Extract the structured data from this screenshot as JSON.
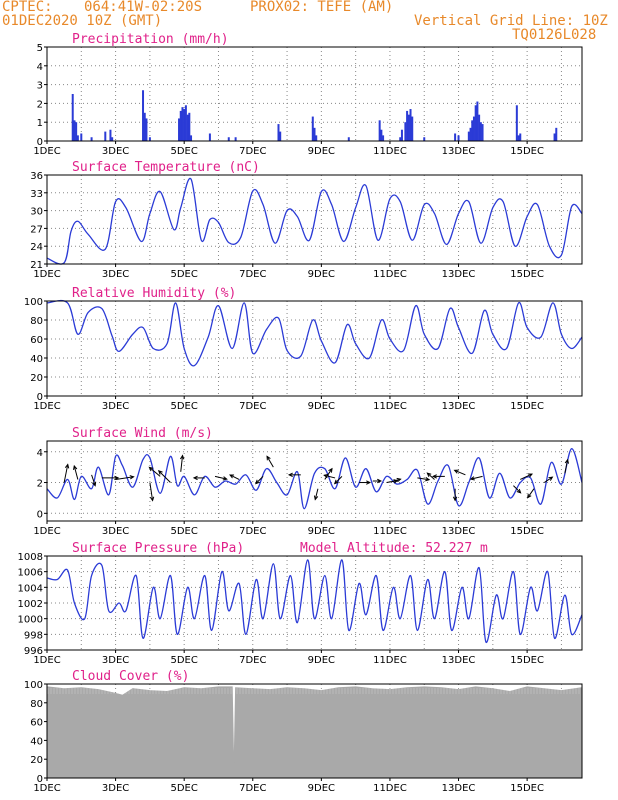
{
  "header": {
    "source": "CPTEC:",
    "location": "064:41W-02:20S",
    "station": "PROX02: TEFE (AM)",
    "run": "01DEC2020 10Z (GMT)",
    "grid_note": "Vertical Grid Line: 10Z",
    "model_code": "TQ0126L028"
  },
  "colors": {
    "header": "#e8892a",
    "title": "#e0218a",
    "series": "#2b3bd6",
    "cloud": "#a9a9a9",
    "wind_arrow": "#000000"
  },
  "chart_data": [
    {
      "id": "precip",
      "type": "bar",
      "title": "Precipitation (mm/h)",
      "xlabel": "",
      "ylabel": "",
      "x_unit": "day of Dec 2020 (10Z)",
      "xlim": [
        1,
        16.6
      ],
      "ylim": [
        0,
        5
      ],
      "yticks": [
        0,
        1,
        2,
        3,
        4,
        5
      ],
      "xtick_labels": [
        "1DEC",
        "3DEC",
        "5DEC",
        "7DEC",
        "9DEC",
        "11DEC",
        "13DEC",
        "15DEC"
      ],
      "grid": true,
      "x": [
        1.75,
        1.8,
        1.85,
        1.9,
        2.0,
        2.3,
        2.7,
        2.85,
        2.9,
        3.8,
        3.85,
        3.9,
        4.0,
        4.85,
        4.9,
        4.95,
        5.0,
        5.05,
        5.1,
        5.15,
        5.2,
        5.75,
        6.3,
        6.5,
        7.75,
        7.8,
        8.75,
        8.8,
        8.85,
        9.8,
        10.7,
        10.75,
        10.8,
        11.3,
        11.35,
        11.45,
        11.5,
        11.55,
        11.6,
        11.65,
        12.0,
        12.9,
        13.0,
        13.3,
        13.35,
        13.4,
        13.45,
        13.5,
        13.55,
        13.6,
        13.65,
        13.7,
        14.7,
        14.75,
        14.8,
        15.8,
        15.85
      ],
      "values": [
        2.5,
        1.1,
        1.0,
        0.3,
        0.4,
        0.2,
        0.5,
        0.6,
        0.2,
        2.7,
        1.5,
        1.2,
        0.2,
        1.2,
        1.6,
        1.8,
        1.7,
        1.9,
        1.4,
        1.5,
        0.3,
        0.4,
        0.2,
        0.2,
        0.9,
        0.5,
        1.3,
        0.7,
        0.3,
        0.2,
        1.1,
        0.6,
        0.3,
        0.2,
        0.6,
        1.0,
        1.6,
        1.4,
        1.7,
        1.3,
        0.2,
        0.4,
        0.3,
        0.5,
        0.7,
        1.1,
        1.3,
        1.9,
        2.1,
        1.4,
        1.0,
        0.9,
        1.9,
        0.3,
        0.4,
        0.4,
        0.7
      ]
    },
    {
      "id": "temp",
      "type": "line",
      "title": "Surface Temperature (nC)",
      "xlabel": "",
      "ylabel": "",
      "xlim": [
        1,
        16.6
      ],
      "ylim": [
        21,
        36
      ],
      "yticks": [
        21,
        24,
        27,
        30,
        33,
        36
      ],
      "xtick_labels": [
        "1DEC",
        "3DEC",
        "5DEC",
        "7DEC",
        "9DEC",
        "11DEC",
        "13DEC",
        "15DEC"
      ],
      "grid": true,
      "x": [
        1.0,
        1.5,
        1.7,
        1.9,
        2.2,
        2.7,
        3.0,
        3.3,
        3.75,
        4.0,
        4.3,
        4.7,
        4.9,
        5.2,
        5.5,
        5.75,
        6.0,
        6.3,
        6.65,
        7.0,
        7.3,
        7.65,
        8.0,
        8.3,
        8.65,
        9.0,
        9.3,
        9.65,
        10.0,
        10.3,
        10.65,
        11.0,
        11.3,
        11.65,
        12.0,
        12.3,
        12.65,
        13.0,
        13.3,
        13.65,
        14.0,
        14.3,
        14.65,
        15.0,
        15.3,
        15.65,
        16.0,
        16.3,
        16.6
      ],
      "values": [
        22.0,
        21.2,
        26.5,
        28.2,
        26.0,
        23.5,
        31.5,
        30.5,
        24.8,
        29.5,
        33.2,
        26.8,
        30.5,
        35.3,
        25.0,
        28.5,
        28.0,
        24.6,
        25.5,
        33.3,
        31.0,
        24.5,
        30.0,
        29.0,
        25.0,
        33.2,
        31.0,
        24.8,
        30.5,
        34.2,
        25.0,
        32.0,
        31.5,
        25.0,
        31.0,
        29.5,
        24.3,
        29.5,
        31.5,
        24.5,
        30.5,
        31.5,
        24.0,
        29.0,
        31.0,
        24.0,
        22.5,
        30.7,
        29.5
      ]
    },
    {
      "id": "rh",
      "type": "line",
      "title": "Relative Humidity (%)",
      "xlabel": "",
      "ylabel": "",
      "xlim": [
        1,
        16.6
      ],
      "ylim": [
        0,
        100
      ],
      "yticks": [
        0,
        20,
        40,
        60,
        80,
        100
      ],
      "xtick_labels": [
        "1DEC",
        "3DEC",
        "5DEC",
        "7DEC",
        "9DEC",
        "11DEC",
        "13DEC",
        "15DEC"
      ],
      "grid": true,
      "x": [
        1.0,
        1.6,
        1.9,
        2.2,
        2.6,
        2.9,
        3.1,
        3.5,
        3.8,
        4.1,
        4.5,
        4.75,
        5.0,
        5.3,
        5.7,
        6.0,
        6.4,
        6.75,
        7.0,
        7.4,
        7.75,
        8.0,
        8.4,
        8.75,
        9.0,
        9.4,
        9.75,
        10.0,
        10.4,
        10.75,
        11.0,
        11.4,
        11.75,
        12.0,
        12.4,
        12.75,
        13.0,
        13.4,
        13.75,
        14.0,
        14.4,
        14.75,
        15.0,
        15.4,
        15.75,
        16.0,
        16.3,
        16.6
      ],
      "values": [
        98,
        98,
        65,
        88,
        92,
        63,
        47,
        65,
        72,
        50,
        55,
        98,
        50,
        32,
        62,
        95,
        50,
        98,
        45,
        70,
        82,
        48,
        42,
        80,
        58,
        35,
        75,
        55,
        40,
        80,
        60,
        48,
        95,
        65,
        50,
        92,
        72,
        45,
        90,
        65,
        50,
        98,
        72,
        62,
        98,
        65,
        50,
        62
      ]
    },
    {
      "id": "wind",
      "type": "line",
      "title": "Surface Wind (m/s)",
      "xlabel": "",
      "ylabel": "",
      "xlim": [
        1,
        16.6
      ],
      "ylim": [
        -0.5,
        4.7
      ],
      "yticks": [
        0,
        2,
        4
      ],
      "xtick_labels": [
        "1DEC",
        "3DEC",
        "5DEC",
        "7DEC",
        "9DEC",
        "11DEC",
        "13DEC",
        "15DEC"
      ],
      "grid": true,
      "x": [
        1.0,
        1.3,
        1.6,
        1.8,
        2.0,
        2.3,
        2.5,
        2.8,
        3.0,
        3.2,
        3.5,
        3.8,
        4.0,
        4.3,
        4.6,
        4.8,
        5.0,
        5.3,
        5.6,
        5.9,
        6.2,
        6.5,
        6.8,
        7.1,
        7.4,
        7.7,
        8.0,
        8.3,
        8.5,
        8.8,
        9.1,
        9.4,
        9.7,
        10.0,
        10.3,
        10.6,
        10.9,
        11.2,
        11.5,
        11.8,
        12.1,
        12.4,
        12.7,
        13.0,
        13.3,
        13.6,
        13.9,
        14.2,
        14.5,
        14.8,
        15.1,
        15.4,
        15.7,
        16.0,
        16.3,
        16.6
      ],
      "values": [
        1.6,
        1.0,
        2.2,
        0.9,
        2.4,
        1.6,
        3.0,
        1.2,
        3.7,
        3.1,
        1.7,
        3.5,
        3.6,
        1.3,
        3.7,
        1.8,
        2.4,
        1.2,
        2.4,
        1.7,
        2.1,
        1.9,
        2.5,
        1.5,
        2.9,
        2.0,
        1.2,
        2.7,
        0.3,
        2.6,
        2.9,
        1.6,
        3.6,
        1.7,
        2.9,
        1.4,
        2.4,
        1.9,
        2.2,
        2.8,
        0.6,
        2.1,
        3.1,
        0.5,
        2.0,
        3.6,
        1.0,
        2.6,
        1.0,
        2.0,
        2.3,
        0.6,
        3.3,
        1.9,
        4.2,
        2.0
      ],
      "arrows": [
        {
          "x": 1.5,
          "y": 2.0,
          "u": 0.4,
          "v": 2.0
        },
        {
          "x": 1.9,
          "y": 2.2,
          "u": -0.4,
          "v": 1.5
        },
        {
          "x": 2.3,
          "y": 2.5,
          "u": 0.4,
          "v": -1.2
        },
        {
          "x": 2.6,
          "y": 2.3,
          "u": 1.8,
          "v": 0.0
        },
        {
          "x": 3.0,
          "y": 2.2,
          "u": 2.0,
          "v": 0.3
        },
        {
          "x": 4.0,
          "y": 2.0,
          "u": 0.3,
          "v": -2.0
        },
        {
          "x": 4.3,
          "y": 2.4,
          "u": -1.2,
          "v": 1.0
        },
        {
          "x": 4.6,
          "y": 2.0,
          "u": -1.3,
          "v": 1.3
        },
        {
          "x": 4.9,
          "y": 2.7,
          "u": 0.2,
          "v": 1.8
        },
        {
          "x": 5.6,
          "y": 2.3,
          "u": -1.2,
          "v": 0.0
        },
        {
          "x": 5.9,
          "y": 2.4,
          "u": 1.3,
          "v": -0.3
        },
        {
          "x": 6.6,
          "y": 2.2,
          "u": -1.0,
          "v": 0.5
        },
        {
          "x": 7.3,
          "y": 2.4,
          "u": -0.8,
          "v": -0.8
        },
        {
          "x": 7.6,
          "y": 3.0,
          "u": -0.7,
          "v": 1.2
        },
        {
          "x": 8.4,
          "y": 2.5,
          "u": -1.3,
          "v": 0.0
        },
        {
          "x": 8.9,
          "y": 1.6,
          "u": -0.3,
          "v": -1.2
        },
        {
          "x": 9.1,
          "y": 2.2,
          "u": 0.8,
          "v": 1.2
        },
        {
          "x": 9.4,
          "y": 2.3,
          "u": -1.2,
          "v": 0.3
        },
        {
          "x": 9.6,
          "y": 2.4,
          "u": -0.8,
          "v": -0.8
        },
        {
          "x": 10.1,
          "y": 2.0,
          "u": 1.2,
          "v": 0.0
        },
        {
          "x": 10.5,
          "y": 2.1,
          "u": 0.9,
          "v": 0.0
        },
        {
          "x": 10.9,
          "y": 2.0,
          "u": 1.2,
          "v": 0.2
        },
        {
          "x": 11.1,
          "y": 2.1,
          "u": 0.8,
          "v": 0.2
        },
        {
          "x": 11.8,
          "y": 2.3,
          "u": 1.3,
          "v": -0.2
        },
        {
          "x": 12.3,
          "y": 2.2,
          "u": -0.8,
          "v": 0.7
        },
        {
          "x": 12.6,
          "y": 2.4,
          "u": -1.3,
          "v": 0.0
        },
        {
          "x": 12.9,
          "y": 1.6,
          "u": 0.0,
          "v": -1.3
        },
        {
          "x": 13.2,
          "y": 2.5,
          "u": -1.2,
          "v": 0.5
        },
        {
          "x": 13.7,
          "y": 2.4,
          "u": -1.3,
          "v": -0.3
        },
        {
          "x": 14.6,
          "y": 1.8,
          "u": 0.8,
          "v": -0.8
        },
        {
          "x": 14.8,
          "y": 2.2,
          "u": 1.3,
          "v": 0.6
        },
        {
          "x": 15.2,
          "y": 1.6,
          "u": -0.7,
          "v": -1.0
        },
        {
          "x": 15.5,
          "y": 2.0,
          "u": 0.9,
          "v": 0.6
        },
        {
          "x": 16.1,
          "y": 2.6,
          "u": 0.3,
          "v": 1.5
        }
      ]
    },
    {
      "id": "pressure",
      "type": "line",
      "title": "Surface Pressure (hPa)",
      "annotation": "Model Altitude: 52.227 m",
      "xlabel": "",
      "ylabel": "",
      "xlim": [
        1,
        16.6
      ],
      "ylim": [
        996,
        1008
      ],
      "yticks": [
        996,
        998,
        1000,
        1002,
        1004,
        1006,
        1008
      ],
      "xtick_labels": [
        "1DEC",
        "3DEC",
        "5DEC",
        "7DEC",
        "9DEC",
        "11DEC",
        "13DEC",
        "15DEC"
      ],
      "grid": true,
      "x": [
        1.0,
        1.3,
        1.6,
        1.8,
        2.1,
        2.3,
        2.6,
        2.8,
        3.1,
        3.3,
        3.6,
        3.8,
        4.1,
        4.3,
        4.6,
        4.8,
        5.1,
        5.3,
        5.6,
        5.8,
        6.1,
        6.3,
        6.6,
        6.8,
        7.1,
        7.3,
        7.6,
        7.8,
        8.1,
        8.3,
        8.6,
        8.8,
        9.1,
        9.3,
        9.6,
        9.8,
        10.1,
        10.3,
        10.6,
        10.8,
        11.1,
        11.3,
        11.6,
        11.8,
        12.1,
        12.3,
        12.6,
        12.8,
        13.1,
        13.3,
        13.6,
        13.8,
        14.1,
        14.3,
        14.6,
        14.8,
        15.1,
        15.3,
        15.6,
        15.8,
        16.1,
        16.3,
        16.6
      ],
      "values": [
        1005.2,
        1005.0,
        1006.2,
        1002.0,
        1000.0,
        1005.5,
        1006.8,
        1001.0,
        1002.0,
        1001.0,
        1005.5,
        997.5,
        1004.0,
        1000.0,
        1005.5,
        998.0,
        1004.0,
        1000.0,
        1005.5,
        998.5,
        1006.0,
        1001.0,
        1004.5,
        998.0,
        1005.0,
        1000.0,
        1007.0,
        1000.0,
        1005.5,
        999.5,
        1007.5,
        1000.0,
        1005.5,
        1000.0,
        1007.5,
        998.5,
        1004.5,
        1000.5,
        1005.5,
        998.5,
        1004.0,
        1000.0,
        1005.5,
        998.5,
        1005.0,
        1000.0,
        1006.0,
        998.5,
        1004.0,
        1000.0,
        1006.5,
        997.0,
        1003.0,
        1000.0,
        1006.0,
        998.0,
        1004.0,
        1001.0,
        1006.0,
        997.5,
        1003.0,
        998.0,
        1000.5
      ]
    },
    {
      "id": "cloud",
      "type": "area",
      "title": "Cloud Cover (%)",
      "xlabel": "",
      "ylabel": "",
      "xlim": [
        1,
        16.6
      ],
      "ylim": [
        0,
        100
      ],
      "yticks": [
        0,
        20,
        40,
        60,
        80,
        100
      ],
      "xtick_labels": [
        "1DEC",
        "3DEC",
        "5DEC",
        "7DEC",
        "9DEC",
        "11DEC",
        "13DEC",
        "15DEC"
      ],
      "grid": true,
      "x": [
        1.0,
        1.5,
        2.0,
        2.5,
        3.0,
        3.2,
        3.5,
        4.0,
        4.5,
        5.0,
        5.5,
        6.0,
        6.4,
        6.45,
        6.5,
        7.0,
        7.5,
        8.0,
        8.5,
        9.0,
        9.5,
        10.0,
        10.5,
        11.0,
        11.5,
        12.0,
        12.5,
        13.0,
        13.5,
        14.0,
        14.5,
        15.0,
        15.5,
        16.0,
        16.6
      ],
      "values": [
        97,
        95,
        96,
        94,
        90,
        88,
        95,
        93,
        92,
        96,
        95,
        97,
        97,
        0,
        96,
        95,
        94,
        96,
        95,
        93,
        96,
        97,
        95,
        94,
        96,
        97,
        96,
        94,
        97,
        95,
        92,
        97,
        95,
        93,
        96
      ]
    }
  ]
}
